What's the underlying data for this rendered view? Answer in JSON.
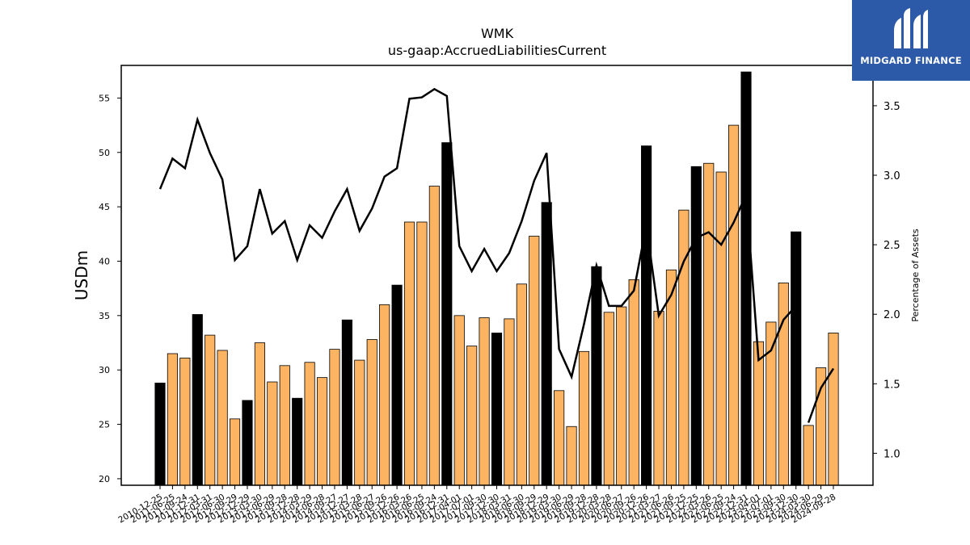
{
  "brand": {
    "name": "MIDGARD FINANCE",
    "color": "#2d5aa8"
  },
  "chart_data": {
    "type": "bar",
    "title": "WMK",
    "subtitle": "us-gaap:AccruedLiabilitiesCurrent",
    "ylabel": "USDm",
    "y2label": "Percentage of Assets",
    "ylim": [
      19.4,
      58
    ],
    "y2lim": [
      0.77,
      3.79
    ],
    "yticks": [
      20,
      25,
      30,
      35,
      40,
      45,
      50,
      55
    ],
    "y2ticks": [
      1.0,
      1.5,
      2.0,
      2.5,
      3.0,
      3.5
    ],
    "colors": {
      "q4_bar": "#000000",
      "bar": "#fdb462",
      "line": "#000000"
    },
    "categories": [
      "2010-12-25",
      "2011-06-25",
      "2011-09-24",
      "2011-12-31",
      "2012-03-31",
      "2012-06-30",
      "2012-09-29",
      "2012-12-29",
      "2013-03-30",
      "2013-06-29",
      "2013-09-28",
      "2013-12-28",
      "2014-03-29",
      "2014-06-28",
      "2014-09-27",
      "2014-12-27",
      "2015-03-28",
      "2015-06-27",
      "2015-09-26",
      "2015-12-26",
      "2016-03-26",
      "2016-06-25",
      "2016-09-24",
      "2016-12-31",
      "2017-04-01",
      "2017-07-01",
      "2017-09-30",
      "2017-12-30",
      "2018-03-31",
      "2018-06-30",
      "2018-09-29",
      "2018-12-29",
      "2019-03-30",
      "2019-06-29",
      "2019-09-28",
      "2019-12-28",
      "2020-03-28",
      "2020-06-27",
      "2020-09-26",
      "2020-12-26",
      "2021-03-27",
      "2021-06-26",
      "2021-09-25",
      "2021-12-25",
      "2022-03-26",
      "2022-06-25",
      "2022-09-24",
      "2022-12-31",
      "2023-04-01",
      "2023-07-01",
      "2023-09-30",
      "2023-12-30",
      "2024-03-30",
      "2024-06-29",
      "2024-09-28"
    ],
    "series": [
      {
        "name": "",
        "axis": "left",
        "kind": "bar",
        "values": [
          28.8,
          31.5,
          31.1,
          35.1,
          33.2,
          31.8,
          25.5,
          27.2,
          32.5,
          28.9,
          30.4,
          27.4,
          30.7,
          29.3,
          31.9,
          34.6,
          30.9,
          32.8,
          36.0,
          37.8,
          43.6,
          43.6,
          46.9,
          50.9,
          35.0,
          32.2,
          34.8,
          33.4,
          34.7,
          37.9,
          42.3,
          45.4,
          28.1,
          24.8,
          31.7,
          39.5,
          35.3,
          35.8,
          38.3,
          50.6,
          35.4,
          39.2,
          44.7,
          48.7,
          49.0,
          48.2,
          52.5,
          57.4,
          32.6,
          34.4,
          38.0,
          42.7,
          24.9,
          30.2,
          33.4
        ],
        "q4_flags": [
          1,
          0,
          0,
          1,
          0,
          0,
          0,
          1,
          0,
          0,
          0,
          1,
          0,
          0,
          0,
          1,
          0,
          0,
          0,
          1,
          0,
          0,
          0,
          1,
          0,
          0,
          0,
          1,
          0,
          0,
          0,
          1,
          0,
          0,
          0,
          1,
          0,
          0,
          0,
          1,
          0,
          0,
          0,
          1,
          0,
          0,
          0,
          1,
          0,
          0,
          0,
          1,
          0,
          0,
          0
        ]
      },
      {
        "name": "",
        "axis": "right",
        "kind": "line",
        "values": [
          2.9,
          3.12,
          3.05,
          3.4,
          3.16,
          2.97,
          2.39,
          2.49,
          2.9,
          2.58,
          2.67,
          2.39,
          2.64,
          2.55,
          2.74,
          2.9,
          2.6,
          2.76,
          2.99,
          3.05,
          3.55,
          3.56,
          3.62,
          3.57,
          2.49,
          2.31,
          2.47,
          2.31,
          2.44,
          2.67,
          2.96,
          3.16,
          1.75,
          1.55,
          1.93,
          2.35,
          2.06,
          2.06,
          2.17,
          2.64,
          1.99,
          2.14,
          2.38,
          2.55,
          2.59,
          2.5,
          2.66,
          2.86,
          1.67,
          1.74,
          1.96,
          2.06,
          1.22,
          1.47,
          1.61
        ],
        "gaps_after_index": [
          51
        ]
      }
    ]
  }
}
